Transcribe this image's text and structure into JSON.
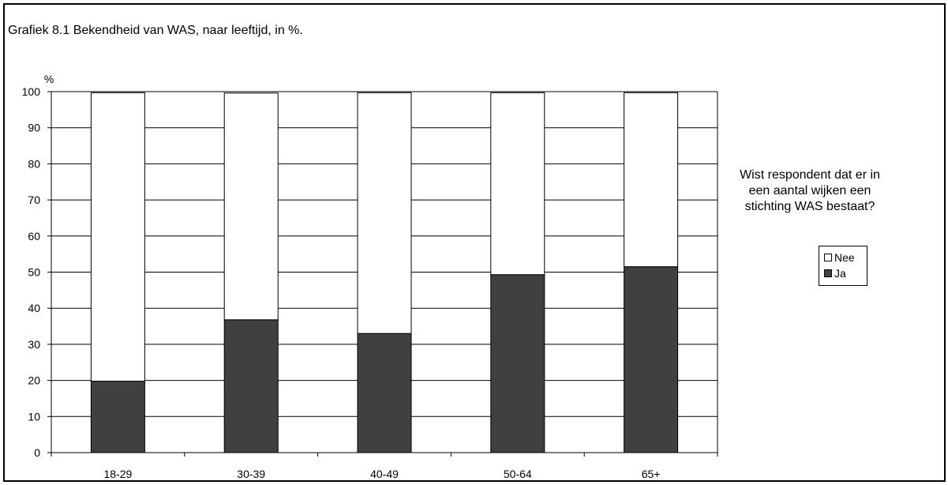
{
  "title": "Grafiek 8.1  Bekendheid van WAS, naar leeftijd,  in %.",
  "legend_title": "Wist respondent dat er in een aantal wijken een stichting WAS bestaat?",
  "colors": {
    "ja": "#404040",
    "nee": "#ffffff",
    "grid": "#000000"
  },
  "chart_data": {
    "type": "bar",
    "stacked": true,
    "categories": [
      "18-29",
      "30-39",
      "40-49",
      "50-64",
      "65+"
    ],
    "series": [
      {
        "name": "Ja",
        "values": [
          19.8,
          36.8,
          33.0,
          49.3,
          51.5
        ]
      },
      {
        "name": "Nee",
        "values": [
          79.9,
          62.8,
          66.7,
          50.4,
          48.2
        ]
      }
    ],
    "ylabel": "%",
    "ylim": [
      0,
      100
    ],
    "yticks": [
      0,
      10,
      20,
      30,
      40,
      50,
      60,
      70,
      80,
      90,
      100
    ],
    "grid": true,
    "legend": [
      "Nee",
      "Ja"
    ],
    "legend_position": "right"
  }
}
